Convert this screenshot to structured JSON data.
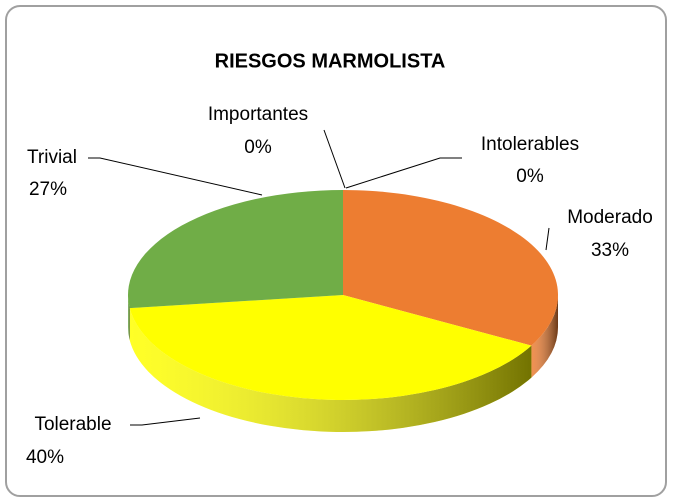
{
  "chart_data": {
    "type": "pie",
    "title": "RIESGOS MARMOLISTA",
    "categories": [
      "Intolerables",
      "Moderado",
      "Tolerable",
      "Trivial",
      "Importantes"
    ],
    "values": [
      0,
      33,
      40,
      27,
      0
    ],
    "value_labels": [
      "0%",
      "33%",
      "40%",
      "27%",
      "0%"
    ],
    "colors": [
      "#4472C4",
      "#ED7D31",
      "#FFFF00",
      "#70AD47",
      "#A5A5A5"
    ]
  }
}
